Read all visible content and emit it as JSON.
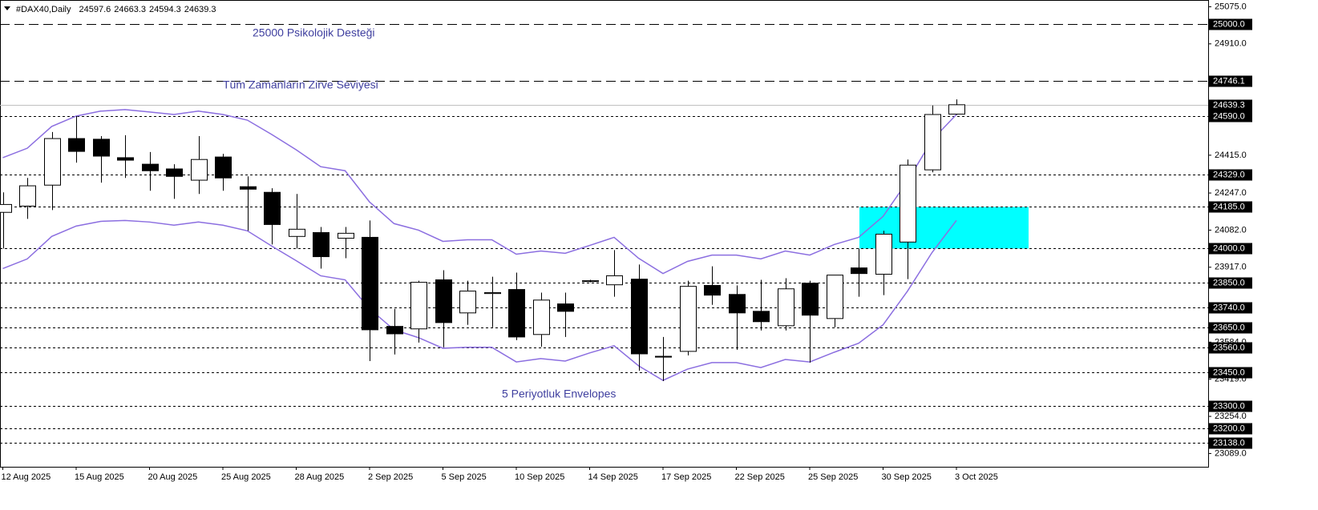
{
  "chart_data": {
    "type": "candlestick",
    "header": {
      "symbol": "#DAX40,Daily",
      "values": [
        24597.6,
        24663.3,
        24594.3,
        24639.3
      ]
    },
    "categories": [
      "12 Aug 2025",
      null,
      null,
      "15 Aug 2025",
      null,
      null,
      "20 Aug 2025",
      null,
      null,
      "25 Aug 2025",
      null,
      null,
      "28 Aug 2025",
      null,
      null,
      "2 Sep 2025",
      null,
      null,
      "5 Sep 2025",
      null,
      null,
      "10 Sep 2025",
      null,
      null,
      "14 Sep 2025",
      null,
      null,
      "17 Sep 2025",
      null,
      null,
      "22 Sep 2025",
      null,
      null,
      "25 Sep 2025",
      null,
      null,
      "30 Sep 2025",
      null,
      null,
      "3 Oct 2025"
    ],
    "open": [
      24161,
      24189,
      24282,
      24489,
      24486,
      24404,
      24375,
      24354,
      24304,
      24407,
      24275,
      24250,
      24054,
      24071,
      24046,
      24050,
      23654,
      23643,
      23861,
      23714,
      23800,
      23818,
      23618,
      23754,
      23854,
      23839,
      23864,
      23521,
      23543,
      23836,
      23796,
      23721,
      23657,
      23846,
      23689,
      23914,
      23886,
      24029,
      24350,
      24597.6
    ],
    "high": [
      24250,
      24314,
      24518,
      24589,
      24500,
      24504,
      24429,
      24375,
      24500,
      24421,
      24321,
      24268,
      24243,
      24096,
      24096,
      24125,
      23732,
      23857,
      23904,
      23857,
      23875,
      23893,
      23804,
      23804,
      23861,
      23993,
      23929,
      23607,
      23857,
      23921,
      23836,
      23861,
      23868,
      23857,
      23882,
      24000,
      24079,
      24396,
      24636,
      24663.3
    ],
    "low": [
      24000,
      24132,
      24171,
      24382,
      24293,
      24314,
      24257,
      24221,
      24243,
      24257,
      24079,
      24018,
      24000,
      23911,
      23957,
      23500,
      23529,
      23582,
      23561,
      23661,
      23650,
      23593,
      23564,
      23607,
      23850,
      23786,
      23457,
      23411,
      23525,
      23750,
      23550,
      23636,
      23636,
      23493,
      23650,
      23786,
      23793,
      23864,
      24339,
      24594.3
    ],
    "close": [
      24196,
      24279,
      24489,
      24432,
      24411,
      24393,
      24346,
      24321,
      24396,
      24314,
      24264,
      24107,
      24086,
      23964,
      24068,
      23639,
      23621,
      23850,
      23671,
      23811,
      23804,
      23607,
      23771,
      23721,
      23857,
      23879,
      23532,
      23518,
      23832,
      23793,
      23714,
      23675,
      23821,
      23704,
      23882,
      23889,
      24064,
      24371,
      24596,
      24639.3
    ],
    "envelopes": {
      "color": "#8b6ee0",
      "upper": [
        24404,
        24446,
        24543,
        24589,
        24611,
        24618,
        24607,
        24596,
        24611,
        24596,
        24571,
        24507,
        24439,
        24364,
        24346,
        24207,
        24111,
        24082,
        24032,
        24039,
        24039,
        23975,
        23989,
        23979,
        24014,
        24050,
        23957,
        23889,
        23943,
        23971,
        23971,
        23954,
        23989,
        23971,
        24018,
        24050,
        24143,
        24300,
        24482,
        24596
      ],
      "lower": [
        23911,
        23954,
        24054,
        24100,
        24121,
        24125,
        24118,
        24104,
        24118,
        24104,
        24079,
        24011,
        23946,
        23879,
        23861,
        23732,
        23639,
        23604,
        23557,
        23561,
        23561,
        23496,
        23511,
        23500,
        23536,
        23568,
        23479,
        23414,
        23464,
        23493,
        23493,
        23471,
        23507,
        23496,
        23539,
        23579,
        23661,
        23811,
        23982,
        24125
      ]
    },
    "ylim": [
      23030,
      25105
    ],
    "yticks": [
      {
        "value": 25075,
        "label": "25075.0"
      },
      {
        "value": 24910,
        "label": "24910.0"
      },
      {
        "value": 24415,
        "label": "24415.0"
      },
      {
        "value": 24247,
        "label": "24247.0"
      },
      {
        "value": 24082,
        "label": "24082.0"
      },
      {
        "value": 23917,
        "label": "23917.0"
      },
      {
        "value": 23584,
        "label": "23584.0"
      },
      {
        "value": 23419,
        "label": "23419.0"
      },
      {
        "value": 23254,
        "label": "23254.0"
      },
      {
        "value": 23089,
        "label": "23089.0"
      }
    ],
    "levels": [
      {
        "value": 25000,
        "label": "25000.0",
        "style": "long-dash"
      },
      {
        "value": 24746.1,
        "label": "24746.1",
        "style": "long-dash"
      },
      {
        "value": 24590,
        "label": "24590.0",
        "style": "dash"
      },
      {
        "value": 24329,
        "label": "24329.0",
        "style": "dash"
      },
      {
        "value": 24185,
        "label": "24185.0",
        "style": "dash"
      },
      {
        "value": 24000,
        "label": "24000.0",
        "style": "dash"
      },
      {
        "value": 23850,
        "label": "23850.0",
        "style": "dash"
      },
      {
        "value": 23740,
        "label": "23740.0",
        "style": "dash"
      },
      {
        "value": 23650,
        "label": "23650.0",
        "style": "dash"
      },
      {
        "value": 23560,
        "label": "23560.0",
        "style": "dash"
      },
      {
        "value": 23450,
        "label": "23450.0",
        "style": "dash"
      },
      {
        "value": 23300,
        "label": "23300.0",
        "style": "dash"
      },
      {
        "value": 23200,
        "label": "23200.0",
        "style": "dash"
      },
      {
        "value": 23138,
        "label": "23138.0",
        "style": "dash"
      }
    ],
    "last_price": {
      "value": 24639.3,
      "label": "24639.3"
    },
    "zone": {
      "low": 24000,
      "high": 24185,
      "color": "#00ffff"
    },
    "annotations": [
      "25000 Psikolojik Desteği",
      "Tüm Zamanların Zirve Seviyesi",
      "5 Periyotluk Envelopes"
    ],
    "annotation_color": "#3f3f9f"
  }
}
